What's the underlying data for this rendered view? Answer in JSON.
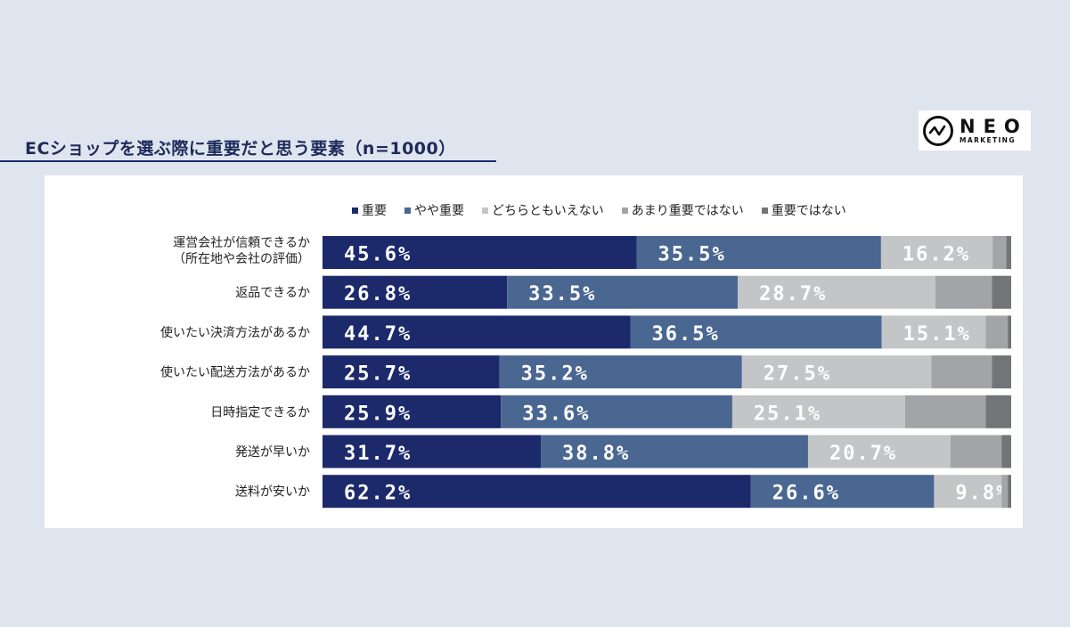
{
  "header": {
    "title": "ECショップを選ぶ際に重要だと思う要素（n=1000）"
  },
  "logo": {
    "name": "NEO",
    "subtitle": "MARKETING"
  },
  "chart_data": {
    "type": "bar",
    "orientation": "horizontal",
    "stacked": true,
    "categories": [
      [
        "運営会社が信頼できるか",
        "（所在地や会社の評価）"
      ],
      [
        "返品できるか"
      ],
      [
        "使いたい決済方法があるか"
      ],
      [
        "使いたい配送方法があるか"
      ],
      [
        "日時指定できるか"
      ],
      [
        "発送が早いか"
      ],
      [
        "送料が安いか"
      ]
    ],
    "series": [
      {
        "name": "重要",
        "color": "#1c2a6b",
        "values": [
          45.6,
          26.8,
          44.7,
          25.7,
          25.9,
          31.7,
          62.2
        ],
        "labels": [
          "45.6%",
          "26.8%",
          "44.7%",
          "25.7%",
          "25.9%",
          "31.7%",
          "62.2%"
        ]
      },
      {
        "name": "やや重要",
        "color": "#4a6791",
        "values": [
          35.5,
          33.5,
          36.5,
          35.2,
          33.6,
          38.8,
          26.6
        ],
        "labels": [
          "35.5%",
          "33.5%",
          "36.5%",
          "35.2%",
          "33.6%",
          "38.8%",
          "26.6%"
        ]
      },
      {
        "name": "どちらともいえない",
        "color": "#c4c5c7",
        "values": [
          16.2,
          28.7,
          15.1,
          27.5,
          25.1,
          20.7,
          9.8
        ],
        "labels": [
          "16.2%",
          "28.7%",
          "15.1%",
          "27.5%",
          "25.1%",
          "20.7%",
          "9.8%"
        ]
      },
      {
        "name": "あまり重要ではない",
        "color": "#a3a4a7",
        "values": [
          2.0,
          8.2,
          3.2,
          8.8,
          11.7,
          7.4,
          0.9
        ],
        "labels": [
          "",
          "",
          "",
          "",
          "",
          "",
          ""
        ]
      },
      {
        "name": "重要ではない",
        "color": "#737478",
        "values": [
          0.7,
          2.8,
          0.5,
          2.8,
          3.7,
          1.4,
          0.5
        ],
        "labels": [
          "",
          "",
          "",
          "",
          "",
          "",
          ""
        ]
      }
    ],
    "xlim": [
      0,
      100
    ],
    "legend_position": "top"
  }
}
